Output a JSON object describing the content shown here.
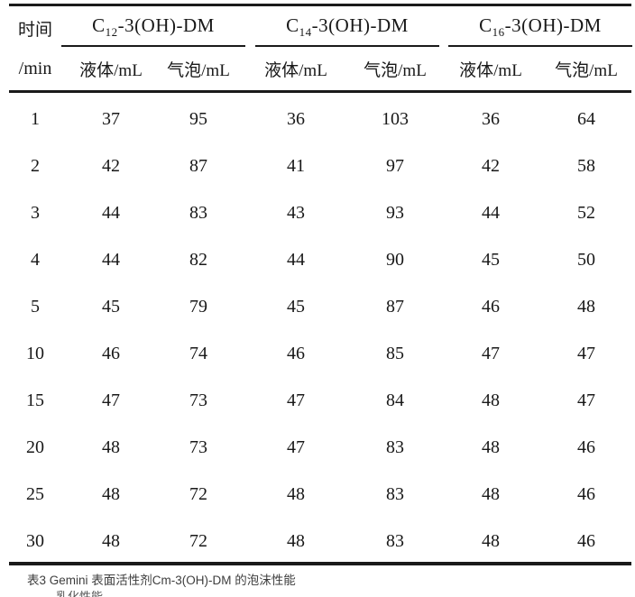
{
  "table": {
    "time_header_line1": "时间",
    "time_header_line2": "/min",
    "groups": [
      {
        "prefix": "C",
        "sub": "12",
        "suffix": "-3(OH)-DM"
      },
      {
        "prefix": "C",
        "sub": "14",
        "suffix": "-3(OH)-DM"
      },
      {
        "prefix": "C",
        "sub": "16",
        "suffix": "-3(OH)-DM"
      }
    ],
    "subheaders": [
      "液体/mL",
      "气泡/mL"
    ],
    "rows": [
      {
        "time": "1",
        "values": [
          "37",
          "95",
          "36",
          "103",
          "36",
          "64"
        ]
      },
      {
        "time": "2",
        "values": [
          "42",
          "87",
          "41",
          "97",
          "42",
          "58"
        ]
      },
      {
        "time": "3",
        "values": [
          "44",
          "83",
          "43",
          "93",
          "44",
          "52"
        ]
      },
      {
        "time": "4",
        "values": [
          "44",
          "82",
          "44",
          "90",
          "45",
          "50"
        ]
      },
      {
        "time": "5",
        "values": [
          "45",
          "79",
          "45",
          "87",
          "46",
          "48"
        ]
      },
      {
        "time": "10",
        "values": [
          "46",
          "74",
          "46",
          "85",
          "47",
          "47"
        ]
      },
      {
        "time": "15",
        "values": [
          "47",
          "73",
          "47",
          "84",
          "48",
          "47"
        ]
      },
      {
        "time": "20",
        "values": [
          "48",
          "73",
          "47",
          "83",
          "48",
          "46"
        ]
      },
      {
        "time": "25",
        "values": [
          "48",
          "72",
          "48",
          "83",
          "48",
          "46"
        ]
      },
      {
        "time": "30",
        "values": [
          "48",
          "72",
          "48",
          "83",
          "48",
          "46"
        ]
      }
    ]
  },
  "caption": "表3 Gemini 表面活性剂Cm-3(OH)-DM 的泡沫性能",
  "clipped_text": "乳化性能",
  "colors": {
    "rule": "#1a1a1a",
    "text": "#181818",
    "caption": "#3d3d3d"
  }
}
